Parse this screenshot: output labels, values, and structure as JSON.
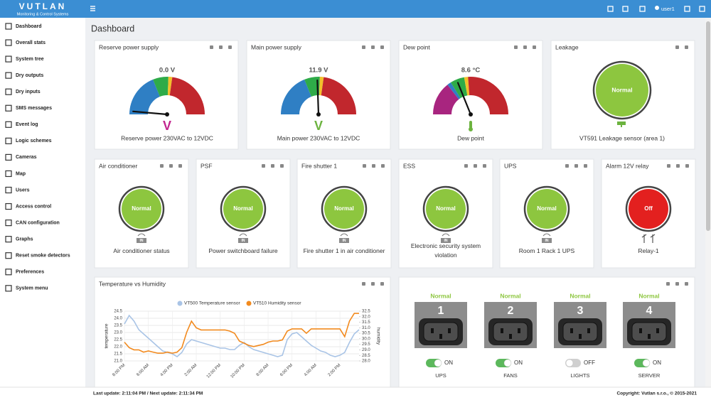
{
  "header": {
    "logo": "VUTLAN",
    "logo_subtitle": "Monitoring & Control Systems",
    "user": "user1"
  },
  "sidebar": {
    "items": [
      "Dashboard",
      "Overall stats",
      "System tree",
      "Dry outputs",
      "Dry inputs",
      "SMS messages",
      "Event log",
      "Logic schemes",
      "Cameras",
      "Map",
      "Users",
      "Access control",
      "CAN configuration",
      "Graphs",
      "Reset smoke detectors",
      "Preferences",
      "System menu"
    ]
  },
  "page_title": "Dashboard",
  "gauges": [
    {
      "title": "Reserve power supply",
      "reading": "0.0 V",
      "icon_text": "V",
      "icon_color": "#c2268f",
      "caption": "Reserve power 230VAC to 12VDC"
    },
    {
      "title": "Main power supply",
      "reading": "11.9 V",
      "icon_text": "V",
      "icon_color": "#6cb33f",
      "caption": "Main power 230VAC to 12VDC"
    },
    {
      "title": "Dew point",
      "reading": "8.6 °C",
      "caption": "Dew point"
    }
  ],
  "leakage": {
    "title": "Leakage",
    "status": "Normal",
    "caption": "VT591 Leakage sensor (area 1)"
  },
  "sensors": [
    {
      "title": "Air conditioner",
      "status": "Normal",
      "badge": "IN",
      "caption": "Air conditioner status",
      "color": "#8dc63f"
    },
    {
      "title": "PSF",
      "status": "Normal",
      "badge": "IN",
      "caption": "Power switchboard failure",
      "color": "#8dc63f"
    },
    {
      "title": "Fire shutter 1",
      "status": "Normal",
      "badge": "IN",
      "caption": "Fire shutter 1 in air conditioner",
      "color": "#8dc63f"
    },
    {
      "title": "ESS",
      "status": "Normal",
      "badge": "IN",
      "caption": "Electronic security system violation",
      "color": "#8dc63f"
    },
    {
      "title": "UPS",
      "status": "Normal",
      "badge": "IN",
      "caption": "Room 1 Rack 1 UPS",
      "color": "#8dc63f"
    },
    {
      "title": "Alarm 12V relay",
      "status": "Off",
      "caption": "Relay-1",
      "color": "#e3201f"
    }
  ],
  "chart_data": {
    "type": "line",
    "title": "Temperature vs Humidity",
    "categories": [
      "8:00 PM",
      null,
      null,
      null,
      null,
      "6:00 AM",
      null,
      null,
      null,
      null,
      "4:00 PM",
      null,
      null,
      null,
      null,
      "2:00 AM",
      null,
      null,
      null,
      null,
      "12:00 PM",
      null,
      null,
      null,
      null,
      "10:00 PM",
      null,
      null,
      null,
      null,
      "8:00 AM",
      null,
      null,
      null,
      null,
      "6:00 PM",
      null,
      null,
      null,
      null,
      "4:00 AM",
      null,
      null,
      null,
      null,
      "2:00 PM",
      null,
      null,
      null,
      null
    ],
    "series": [
      {
        "name": "VT500 Temperature sensor",
        "color": "#a9c4e6",
        "values": [
          23.6,
          24.2,
          23.8,
          23.2,
          22.9,
          22.6,
          22.3,
          22.0,
          21.7,
          21.6,
          21.5,
          21.3,
          21.6,
          22.2,
          22.5,
          22.4,
          22.3,
          22.2,
          22.1,
          22.0,
          21.9,
          21.9,
          21.8,
          21.8,
          22.1,
          22.3,
          22.0,
          21.8,
          21.7,
          21.6,
          21.5,
          21.4,
          21.3,
          21.4,
          22.5,
          22.9,
          23.0,
          22.7,
          22.4,
          22.1,
          21.9,
          21.7,
          21.6,
          21.4,
          21.3,
          21.4,
          21.6,
          22.3,
          22.9,
          23.2
        ]
      },
      {
        "name": "VT510 Humidity sensor",
        "color": "#f28a1e",
        "axis": "y2",
        "values": [
          29.7,
          29.2,
          29.0,
          29.0,
          28.8,
          28.9,
          28.8,
          28.7,
          28.7,
          28.8,
          28.7,
          28.8,
          29.2,
          30.6,
          31.6,
          31.0,
          30.8,
          30.8,
          30.8,
          30.8,
          30.8,
          30.8,
          30.7,
          30.5,
          29.8,
          29.6,
          29.4,
          29.3,
          29.4,
          29.5,
          29.7,
          29.8,
          29.8,
          29.9,
          30.7,
          30.9,
          30.9,
          30.9,
          30.5,
          30.9,
          30.9,
          30.9,
          30.9,
          30.9,
          30.9,
          30.9,
          30.2,
          31.6,
          32.3,
          32.3
        ]
      }
    ],
    "ylabel": "temperature",
    "y2label": "humidity",
    "ylim": [
      21,
      24.5
    ],
    "yticks": [
      {
        "value": 21,
        "label": "21.0"
      },
      21.5,
      {
        "value": 22,
        "label": "22.0"
      },
      22.5,
      {
        "value": 23,
        "label": "23.0"
      },
      23.5,
      {
        "value": 24,
        "label": "24.0"
      },
      24.5
    ],
    "y2lim": [
      28,
      32.5
    ],
    "y2ticks": [
      {
        "value": 28,
        "label": "28.0"
      },
      28.5,
      {
        "value": 29,
        "label": "29.0"
      },
      29.5,
      {
        "value": 30,
        "label": "30.0"
      },
      30.5,
      {
        "value": 31,
        "label": "31.0"
      },
      31.5,
      {
        "value": 32,
        "label": "32.0"
      },
      32.5
    ],
    "grid": true
  },
  "outlets": [
    {
      "number": 1,
      "status": "Normal",
      "switch": "ON",
      "on": true,
      "name": "UPS"
    },
    {
      "number": 2,
      "status": "Normal",
      "switch": "ON",
      "on": true,
      "name": "FANS"
    },
    {
      "number": 3,
      "status": "Normal",
      "switch": "OFF",
      "on": false,
      "name": "LIGHTS"
    },
    {
      "number": 4,
      "status": "Normal",
      "switch": "ON",
      "on": true,
      "name": "SERVER"
    }
  ],
  "footer": {
    "last_update": "Last update: 2:11:04 PM / Next update: 2:11:34 PM",
    "copyright": "Copyright: Vutlan s.r.o., © 2015-2021"
  }
}
